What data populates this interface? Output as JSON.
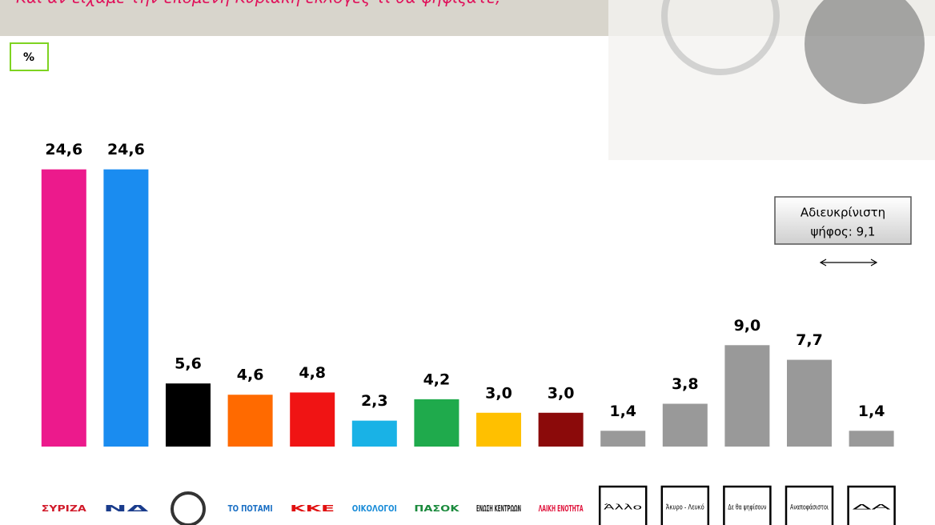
{
  "chart_data": {
    "type": "bar",
    "title": "Και αν είχαμε την επόμενη Κυριακή εκλογές τι θα ψηφίζατε;",
    "unit_label": "%",
    "categories": [
      "ΣΥΡΙΖΑ",
      "ΝΔ",
      null,
      "ΤΟ ΠΟΤΑΜΙ",
      "ΚΚΕ",
      "ΟΙΚΟΛΟΓΟΙ",
      "ΠΑΣΟΚ",
      "ΕΝΩΣΗ ΚΕΝΤΡΩΩΝ",
      "ΛΑΙΚΗ ΕΝΟΤΗΤΑ",
      "Άλλο",
      "Άκυρο - Λευκό",
      "Δε θα ψηφίσουν",
      "Αναποφάσιστοι",
      "ΔΑ"
    ],
    "values": [
      24.6,
      24.6,
      5.6,
      4.6,
      4.8,
      2.3,
      4.2,
      3.0,
      3.0,
      1.4,
      3.8,
      9.0,
      7.7,
      1.4
    ],
    "value_labels": [
      "24,6",
      "24,6",
      "5,6",
      "4,6",
      "4,8",
      "2,3",
      "4,2",
      "3,0",
      "3,0",
      "1,4",
      "3,8",
      "9,0",
      "7,7",
      "1,4"
    ],
    "colors": [
      "#ec1a8c",
      "#1a8cf0",
      "#000000",
      "#ff6a00",
      "#f01414",
      "#19b2e6",
      "#1faa4c",
      "#ffc000",
      "#8b0a0a",
      "#999999",
      "#999999",
      "#999999",
      "#999999",
      "#999999"
    ],
    "label_colors": [
      "#d11a2a",
      "#1a3c8c",
      "#333333",
      "#1a6fc4",
      "#e01010",
      "#1a8cd8",
      "#1a8a3c",
      "#222222",
      "#e0143c",
      "#000000",
      "#000000",
      "#000000",
      "#000000",
      "#000000"
    ],
    "boxed_categories": [
      false,
      false,
      false,
      false,
      false,
      false,
      false,
      false,
      false,
      true,
      true,
      true,
      true,
      true
    ],
    "ylim": [
      0,
      25
    ],
    "annotation": [
      "Αδιευκρίνιστη",
      "ψήφος: 9,1"
    ]
  }
}
